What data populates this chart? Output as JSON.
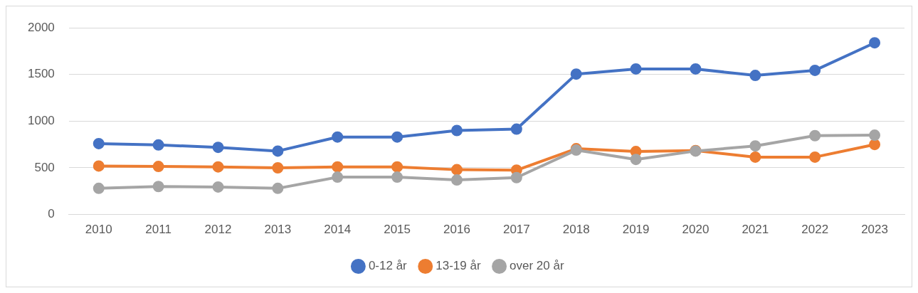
{
  "chart_data": {
    "type": "line",
    "categories": [
      "2010",
      "2011",
      "2012",
      "2013",
      "2014",
      "2015",
      "2016",
      "2017",
      "2018",
      "2019",
      "2020",
      "2021",
      "2022",
      "2023"
    ],
    "series": [
      {
        "name": "0-12 år",
        "color": "#4472c4",
        "values": [
          760,
          745,
          720,
          680,
          830,
          830,
          900,
          915,
          1505,
          1560,
          1560,
          1490,
          1545,
          1840
        ]
      },
      {
        "name": "13-19 år",
        "color": "#ed7d31",
        "values": [
          520,
          515,
          510,
          500,
          510,
          510,
          480,
          475,
          705,
          675,
          685,
          615,
          615,
          750
        ]
      },
      {
        "name": "over 20 år",
        "color": "#a5a5a5",
        "values": [
          280,
          300,
          295,
          280,
          400,
          400,
          370,
          395,
          690,
          590,
          680,
          735,
          845,
          850
        ]
      }
    ],
    "ylim": [
      0,
      2000
    ],
    "yticks": [
      0,
      500,
      1000,
      1500,
      2000
    ],
    "grid": "y",
    "legend": "bottom",
    "marker": "circle",
    "line_style": "solid"
  }
}
